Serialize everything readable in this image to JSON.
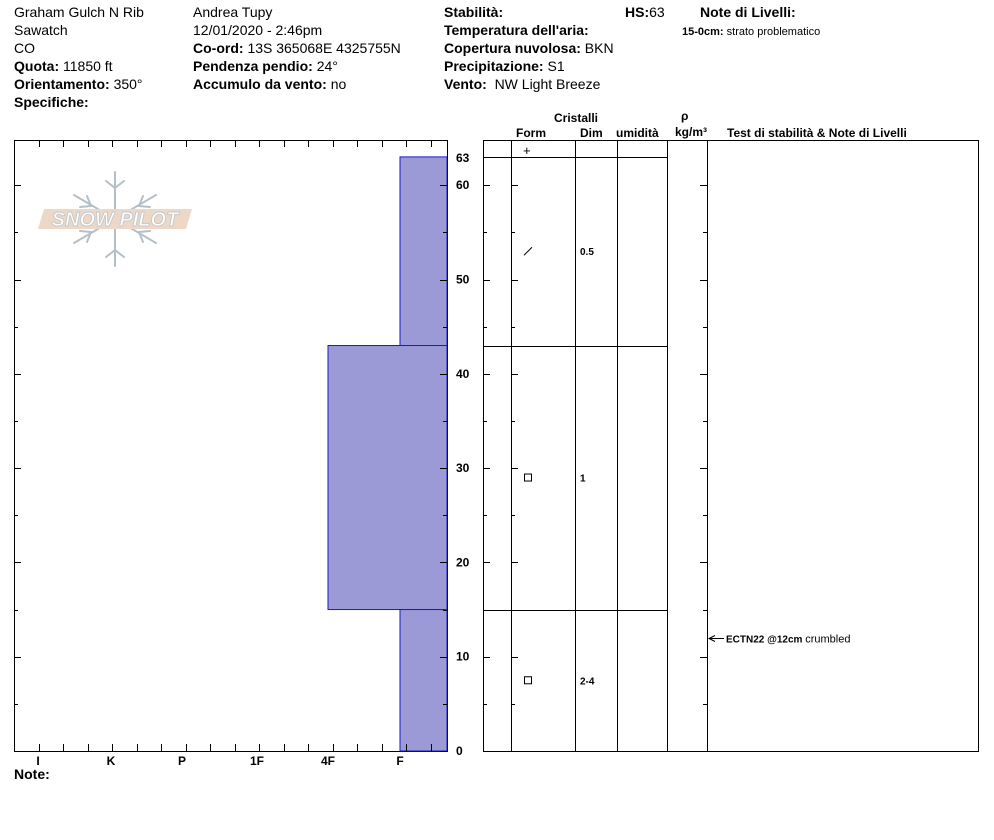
{
  "header": {
    "location": "Graham Gulch N Rib",
    "range": "Sawatch",
    "state": "CO",
    "elevation_label": "Quota:",
    "elevation_value": "11850 ft",
    "aspect_label": "Orientamento:",
    "aspect_value": "350°",
    "specifics_label": "Specifiche:",
    "observer": "Andrea Tupy",
    "datetime": "12/01/2020 - 2:46pm",
    "coord_label": "Co-ord:",
    "coord_value": "13S 365068E 4325755N",
    "slope_label": "Pendenza pendio:",
    "slope_value": "24°",
    "wind_loading_label": "Accumulo da vento:",
    "wind_loading_value": "no",
    "stability_label": "Stabilità:",
    "air_temp_label": "Temperatura dell'aria:",
    "sky_label": "Copertura nuvolosa:",
    "sky_value": "BKN",
    "precip_label": "Precipitazione:",
    "precip_value": "S1",
    "wind_label": "Vento:",
    "wind_value": "NW Light Breeze",
    "hs_label": "HS:",
    "hs_value": "63",
    "layer_notes_label": "Note di Livelli:",
    "layer_note_depth": "15-0cm:",
    "layer_note_text": "strato problematico"
  },
  "columns": {
    "crystals": "Cristalli",
    "form": "Form",
    "dim": "Dim",
    "moisture": "umidità",
    "rho": "ρ",
    "density_unit": "kg/m³",
    "stability_notes": "Test di stabilità & Note di Livelli"
  },
  "logo_text": "SNOW PILOT",
  "note_label": "Note:",
  "colors": {
    "layer_fill": "#9b9ad6",
    "layer_stroke": "#1a1acc"
  },
  "chart_data": {
    "type": "bar",
    "orientation": "horizontal",
    "description_of_axes": "snow height (cm) vs hand hardness",
    "y_ticks": [
      0,
      10,
      20,
      30,
      40,
      50,
      60,
      63
    ],
    "ylim": [
      0,
      63
    ],
    "hardness_scale": [
      "I",
      "K",
      "P",
      "1F",
      "4F",
      "F"
    ],
    "layers": [
      {
        "top": 63,
        "bottom": 43,
        "hardness": "F",
        "form": "decomposing",
        "grain_size": "0.5"
      },
      {
        "top": 43,
        "bottom": 15,
        "hardness": "4F",
        "form": "faceted",
        "grain_size": "1"
      },
      {
        "top": 15,
        "bottom": 0,
        "hardness": "F",
        "form": "faceted",
        "grain_size": "2-4"
      }
    ],
    "tests": [
      {
        "depth": 12,
        "code": "ECTN22 @12cm",
        "comment": "crumbled"
      }
    ]
  }
}
